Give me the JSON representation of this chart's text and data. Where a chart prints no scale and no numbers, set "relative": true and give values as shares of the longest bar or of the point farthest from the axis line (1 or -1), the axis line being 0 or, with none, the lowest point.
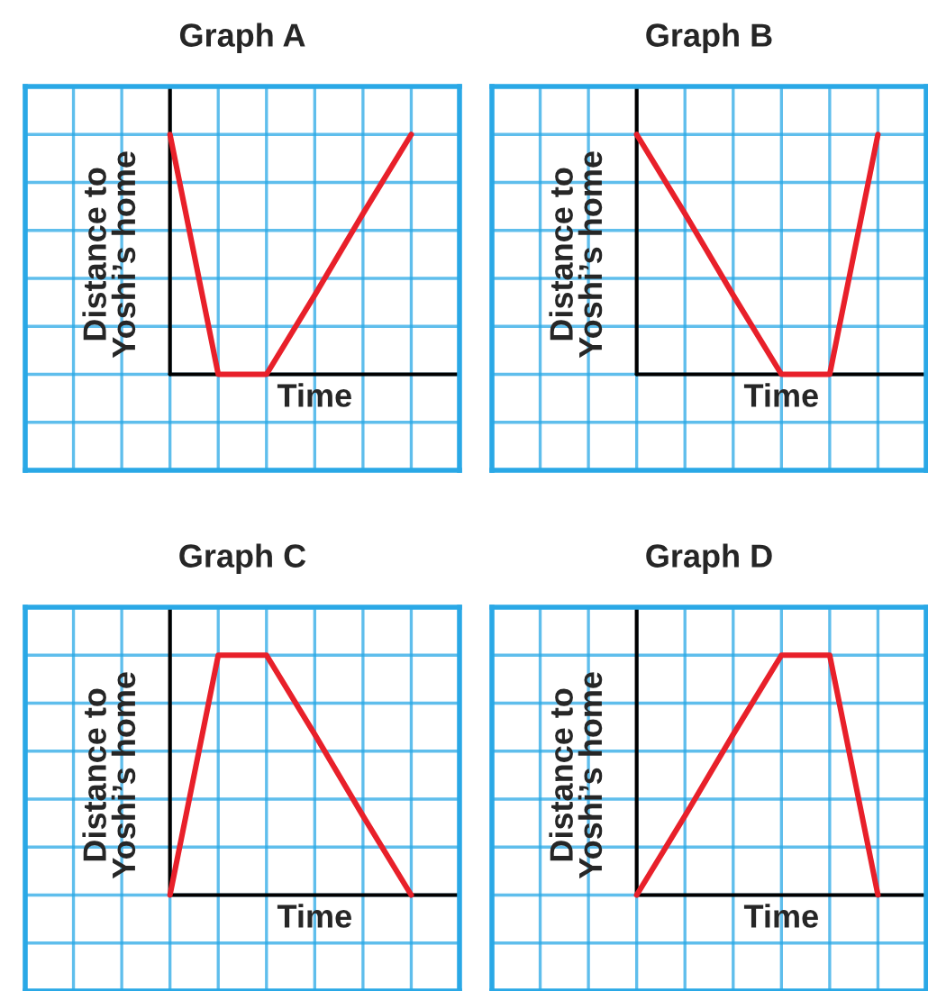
{
  "chart_data": [
    {
      "type": "line",
      "title": "Graph A",
      "xlabel": "Time",
      "ylabel": "Distance to\nYoshi’s home",
      "relative": true,
      "grid": true,
      "tick_labels": false,
      "categories": [
        null,
        null,
        null,
        null,
        null,
        null
      ],
      "series": [
        {
          "color": "#e8202a",
          "values": [
            1,
            0,
            0,
            0.33,
            0.67,
            1
          ]
        }
      ]
    },
    {
      "type": "line",
      "title": "Graph B",
      "xlabel": "Time",
      "ylabel": "Distance to\nYoshi’s home",
      "relative": true,
      "grid": true,
      "tick_labels": false,
      "categories": [
        null,
        null,
        null,
        null,
        null,
        null
      ],
      "series": [
        {
          "color": "#e8202a",
          "values": [
            1,
            0.67,
            0.33,
            0,
            0,
            1
          ]
        }
      ]
    },
    {
      "type": "line",
      "title": "Graph C",
      "xlabel": "Time",
      "ylabel": "Distance to\nYoshi’s home",
      "relative": true,
      "grid": true,
      "tick_labels": false,
      "categories": [
        null,
        null,
        null,
        null,
        null,
        null
      ],
      "series": [
        {
          "color": "#e8202a",
          "values": [
            0,
            1,
            1,
            0.67,
            0.33,
            0
          ]
        }
      ]
    },
    {
      "type": "line",
      "title": "Graph D",
      "xlabel": "Time",
      "ylabel": "Distance to\nYoshi’s home",
      "relative": true,
      "grid": true,
      "tick_labels": false,
      "categories": [
        null,
        null,
        null,
        null,
        null,
        null
      ],
      "series": [
        {
          "color": "#e8202a",
          "values": [
            0,
            0.33,
            0.67,
            1,
            1,
            0
          ]
        }
      ]
    }
  ]
}
